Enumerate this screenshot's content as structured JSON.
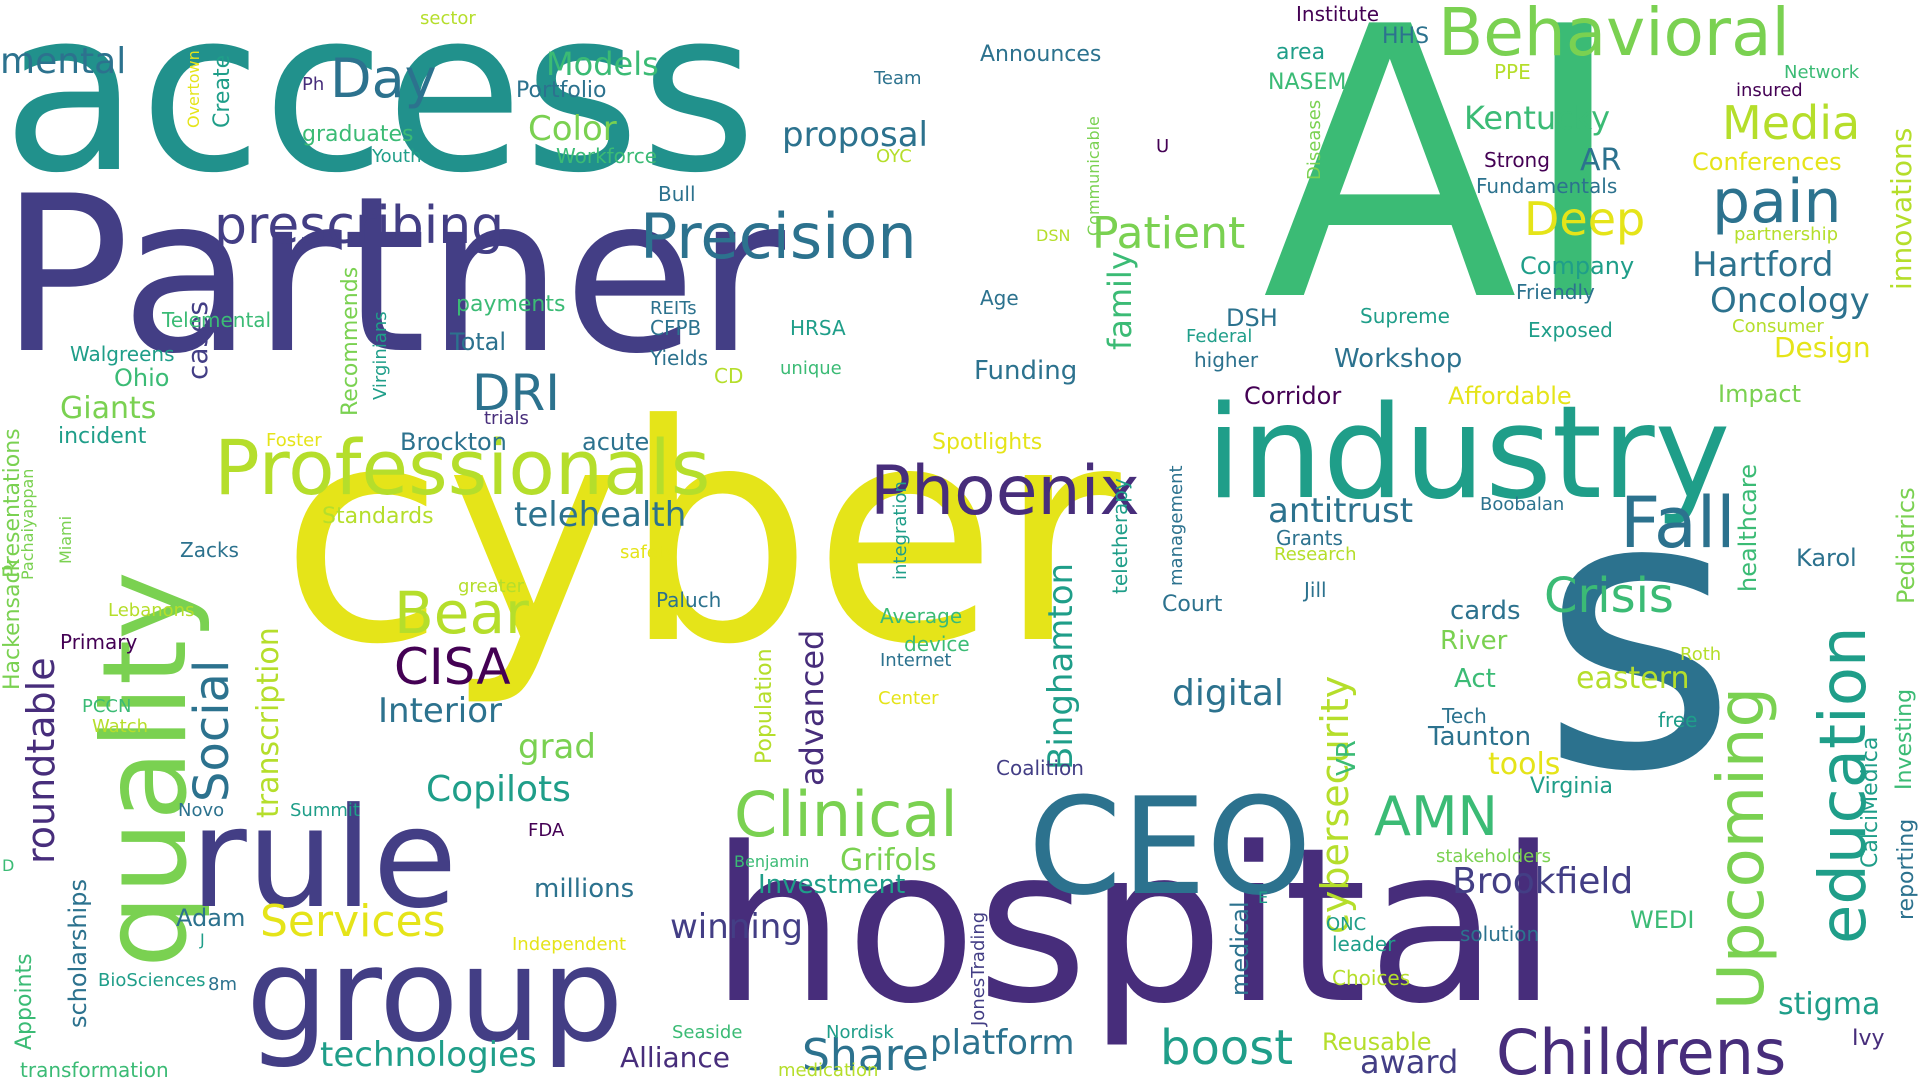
{
  "cloud": {
    "colors": {
      "teal": "#21918c",
      "navy": "#433e85",
      "yellow": "#e5e419",
      "green": "#3bbb75",
      "lime": "#b5de2b",
      "blue": "#2c728e",
      "purple": "#472d7b",
      "aqua": "#1f9e89",
      "lightgreen": "#7ad151",
      "darkpurple": "#440154"
    },
    "words": [
      {
        "text": "access",
        "color": "teal"
      },
      {
        "text": "Partner",
        "color": "navy"
      },
      {
        "text": "cyber",
        "color": "yellow"
      },
      {
        "text": "AI",
        "color": "green"
      },
      {
        "text": "s",
        "color": "blue"
      },
      {
        "text": "hospital",
        "color": "purple"
      },
      {
        "text": "industry",
        "color": "aqua"
      },
      {
        "text": "quality",
        "color": "lightgreen"
      },
      {
        "text": "rule",
        "color": "navy"
      },
      {
        "text": "group",
        "color": "navy"
      },
      {
        "text": "CEO",
        "color": "blue"
      },
      {
        "text": "Professionals",
        "color": "lime"
      },
      {
        "text": "Phoenix",
        "color": "purple"
      },
      {
        "text": "Precision",
        "color": "blue"
      },
      {
        "text": "prescribing",
        "color": "navy"
      },
      {
        "text": "Behavioral",
        "color": "lightgreen"
      },
      {
        "text": "Childrens",
        "color": "purple"
      },
      {
        "text": "Upcoming",
        "color": "lightgreen"
      },
      {
        "text": "education",
        "color": "aqua"
      },
      {
        "text": "Clinical",
        "color": "lightgreen"
      },
      {
        "text": "Fall",
        "color": "blue"
      },
      {
        "text": "pain",
        "color": "blue"
      },
      {
        "text": "Bear",
        "color": "lime"
      },
      {
        "text": "CISA",
        "color": "darkpurple"
      },
      {
        "text": "Day",
        "color": "blue"
      },
      {
        "text": "mental",
        "color": "blue"
      },
      {
        "text": "Media",
        "color": "lime"
      },
      {
        "text": "Deep",
        "color": "yellow"
      },
      {
        "text": "Patient",
        "color": "lightgreen"
      },
      {
        "text": "Crisis",
        "color": "green"
      },
      {
        "text": "AMN",
        "color": "green"
      },
      {
        "text": "DRI",
        "color": "blue"
      },
      {
        "text": "Social",
        "color": "blue"
      },
      {
        "text": "roundtable",
        "color": "purple"
      },
      {
        "text": "boost",
        "color": "aqua"
      },
      {
        "text": "Share",
        "color": "blue"
      },
      {
        "text": "technologies",
        "color": "aqua"
      },
      {
        "text": "platform",
        "color": "blue"
      },
      {
        "text": "Services",
        "color": "yellow"
      },
      {
        "text": "telehealth",
        "color": "blue"
      },
      {
        "text": "antitrust",
        "color": "blue"
      },
      {
        "text": "Copilots",
        "color": "aqua"
      },
      {
        "text": "cybersecurity",
        "color": "lime"
      },
      {
        "text": "Binghamton",
        "color": "aqua"
      },
      {
        "text": "advanced",
        "color": "purple"
      },
      {
        "text": "transcription",
        "color": "lime"
      },
      {
        "text": "Interior",
        "color": "blue"
      },
      {
        "text": "grad",
        "color": "lightgreen"
      },
      {
        "text": "digital",
        "color": "blue"
      },
      {
        "text": "Brookfield",
        "color": "navy"
      },
      {
        "text": "winning",
        "color": "navy"
      },
      {
        "text": "Grifols",
        "color": "lightgreen"
      },
      {
        "text": "Hartford",
        "color": "blue"
      },
      {
        "text": "Oncology",
        "color": "blue"
      },
      {
        "text": "Kentucky",
        "color": "green"
      },
      {
        "text": "Models",
        "color": "green"
      },
      {
        "text": "Color",
        "color": "lightgreen"
      },
      {
        "text": "proposal",
        "color": "blue"
      },
      {
        "text": "family",
        "color": "green"
      },
      {
        "text": "cases",
        "color": "navy"
      },
      {
        "text": "Giants",
        "color": "lightgreen"
      },
      {
        "text": "Ohio",
        "color": "green"
      },
      {
        "text": "stigma",
        "color": "aqua"
      },
      {
        "text": "eastern",
        "color": "lime"
      },
      {
        "text": "tools",
        "color": "yellow"
      },
      {
        "text": "award",
        "color": "navy"
      },
      {
        "text": "Design",
        "color": "yellow"
      },
      {
        "text": "Workshop",
        "color": "blue"
      },
      {
        "text": "Funding",
        "color": "blue"
      },
      {
        "text": "innovations",
        "color": "lime"
      },
      {
        "text": "healthcare",
        "color": "green"
      },
      {
        "text": "Pediatrics",
        "color": "lightgreen"
      },
      {
        "text": "Investing",
        "color": "green"
      },
      {
        "text": "reporting",
        "color": "blue"
      },
      {
        "text": "CalciMedica",
        "color": "aqua"
      },
      {
        "text": "Conferences",
        "color": "yellow"
      },
      {
        "text": "Company",
        "color": "aqua"
      },
      {
        "text": "AR",
        "color": "blue"
      },
      {
        "text": "Affordable",
        "color": "yellow"
      },
      {
        "text": "Impact",
        "color": "lightgreen"
      },
      {
        "text": "Corridor",
        "color": "darkpurple"
      },
      {
        "text": "DSH",
        "color": "blue"
      },
      {
        "text": "Reusable",
        "color": "lime"
      },
      {
        "text": "medical",
        "color": "blue"
      },
      {
        "text": "VR",
        "color": "green"
      },
      {
        "text": "Taunton",
        "color": "blue"
      },
      {
        "text": "cards",
        "color": "blue"
      },
      {
        "text": "River",
        "color": "lightgreen"
      },
      {
        "text": "Act",
        "color": "green"
      },
      {
        "text": "Karol",
        "color": "blue"
      },
      {
        "text": "Virginia",
        "color": "aqua"
      },
      {
        "text": "WEDI",
        "color": "green"
      },
      {
        "text": "millions",
        "color": "blue"
      },
      {
        "text": "Investment",
        "color": "aqua"
      },
      {
        "text": "Alliance",
        "color": "purple"
      },
      {
        "text": "Adam",
        "color": "blue"
      },
      {
        "text": "scholarships",
        "color": "blue"
      },
      {
        "text": "Appoints",
        "color": "green"
      },
      {
        "text": "Hackensack",
        "color": "lightgreen"
      },
      {
        "text": "Presentations",
        "color": "lightgreen"
      },
      {
        "text": "Brockton",
        "color": "blue"
      },
      {
        "text": "acute",
        "color": "blue"
      },
      {
        "text": "Standards",
        "color": "lime"
      },
      {
        "text": "Spotlights",
        "color": "yellow"
      },
      {
        "text": "payments",
        "color": "green"
      },
      {
        "text": "Total",
        "color": "blue"
      },
      {
        "text": "Recommends",
        "color": "lightgreen"
      },
      {
        "text": "graduates",
        "color": "green"
      },
      {
        "text": "Portfolio",
        "color": "blue"
      },
      {
        "text": "Announces",
        "color": "blue"
      },
      {
        "text": "Create",
        "color": "aqua"
      },
      {
        "text": "Overtown",
        "color": "yellow"
      },
      {
        "text": "Workforce",
        "color": "green"
      },
      {
        "text": "Youth",
        "color": "aqua"
      },
      {
        "text": "Telemental",
        "color": "green"
      },
      {
        "text": "Walgreens",
        "color": "aqua"
      },
      {
        "text": "incident",
        "color": "aqua"
      },
      {
        "text": "Primary",
        "color": "darkpurple"
      },
      {
        "text": "PCCN",
        "color": "green"
      },
      {
        "text": "Watch",
        "color": "lime"
      },
      {
        "text": "Novo",
        "color": "blue"
      },
      {
        "text": "Summit",
        "color": "aqua"
      },
      {
        "text": "FDA",
        "color": "darkpurple"
      },
      {
        "text": "Nordisk",
        "color": "aqua"
      },
      {
        "text": "Seaside",
        "color": "green"
      },
      {
        "text": "medication",
        "color": "lime"
      },
      {
        "text": "transformation",
        "color": "green"
      },
      {
        "text": "BioSciences",
        "color": "aqua"
      },
      {
        "text": "8m",
        "color": "blue"
      },
      {
        "text": "Independent",
        "color": "yellow"
      },
      {
        "text": "Benjamin",
        "color": "green"
      },
      {
        "text": "JonesTrading",
        "color": "navy"
      },
      {
        "text": "Choices",
        "color": "lime"
      },
      {
        "text": "leader",
        "color": "aqua"
      },
      {
        "text": "ONC",
        "color": "aqua"
      },
      {
        "text": "solution",
        "color": "blue"
      },
      {
        "text": "stakeholders",
        "color": "lightgreen"
      },
      {
        "text": "Ivy",
        "color": "purple"
      },
      {
        "text": "Coalition",
        "color": "navy"
      },
      {
        "text": "Court",
        "color": "blue"
      },
      {
        "text": "Jill",
        "color": "blue"
      },
      {
        "text": "Tech",
        "color": "blue"
      },
      {
        "text": "free",
        "color": "aqua"
      },
      {
        "text": "Roth",
        "color": "lime"
      },
      {
        "text": "Boobalan",
        "color": "blue"
      },
      {
        "text": "Grants",
        "color": "blue"
      },
      {
        "text": "Research",
        "color": "lime"
      },
      {
        "text": "Average",
        "color": "green"
      },
      {
        "text": "device",
        "color": "green"
      },
      {
        "text": "Internet",
        "color": "blue"
      },
      {
        "text": "Center",
        "color": "yellow"
      },
      {
        "text": "Population",
        "color": "lime"
      },
      {
        "text": "Paluch",
        "color": "blue"
      },
      {
        "text": "safety",
        "color": "yellow"
      },
      {
        "text": "greater",
        "color": "lime"
      },
      {
        "text": "Zacks",
        "color": "blue"
      },
      {
        "text": "Lebanons",
        "color": "lime"
      },
      {
        "text": "Foster",
        "color": "yellow"
      },
      {
        "text": "trials",
        "color": "purple"
      },
      {
        "text": "CD",
        "color": "lime"
      },
      {
        "text": "unique",
        "color": "green"
      },
      {
        "text": "Yields",
        "color": "blue"
      },
      {
        "text": "CFPB",
        "color": "blue"
      },
      {
        "text": "REITs",
        "color": "blue"
      },
      {
        "text": "HRSA",
        "color": "aqua"
      },
      {
        "text": "Age",
        "color": "blue"
      },
      {
        "text": "integration",
        "color": "aqua"
      },
      {
        "text": "teletherapy",
        "color": "aqua"
      },
      {
        "text": "management",
        "color": "blue"
      },
      {
        "text": "Federal",
        "color": "aqua"
      },
      {
        "text": "higher",
        "color": "blue"
      },
      {
        "text": "Supreme",
        "color": "aqua"
      },
      {
        "text": "Exposed",
        "color": "aqua"
      },
      {
        "text": "Consumer",
        "color": "lime"
      },
      {
        "text": "Friendly",
        "color": "blue"
      },
      {
        "text": "Strong",
        "color": "darkpurple"
      },
      {
        "text": "Fundamentals",
        "color": "blue"
      },
      {
        "text": "partnership",
        "color": "lime"
      },
      {
        "text": "Network",
        "color": "green"
      },
      {
        "text": "insured",
        "color": "darkpurple"
      },
      {
        "text": "PPE",
        "color": "lime"
      },
      {
        "text": "NASEM",
        "color": "green"
      },
      {
        "text": "area",
        "color": "aqua"
      },
      {
        "text": "HHS",
        "color": "blue"
      },
      {
        "text": "Institute",
        "color": "darkpurple"
      },
      {
        "text": "Diseases",
        "color": "lightgreen"
      },
      {
        "text": "Communicable",
        "color": "lightgreen"
      },
      {
        "text": "U",
        "color": "darkpurple"
      },
      {
        "text": "Team",
        "color": "blue"
      },
      {
        "text": "OYC",
        "color": "lime"
      },
      {
        "text": "Ph",
        "color": "purple"
      },
      {
        "text": "Bull",
        "color": "blue"
      },
      {
        "text": "sector",
        "color": "lime"
      },
      {
        "text": "DSN",
        "color": "lime"
      },
      {
        "text": "Virginians",
        "color": "aqua"
      },
      {
        "text": "Pachaiyappan",
        "color": "lightgreen"
      },
      {
        "text": "Miami",
        "color": "lightgreen"
      },
      {
        "text": "D",
        "color": "green"
      },
      {
        "text": "J",
        "color": "aqua"
      },
      {
        "text": "E",
        "color": "aqua"
      }
    ]
  }
}
